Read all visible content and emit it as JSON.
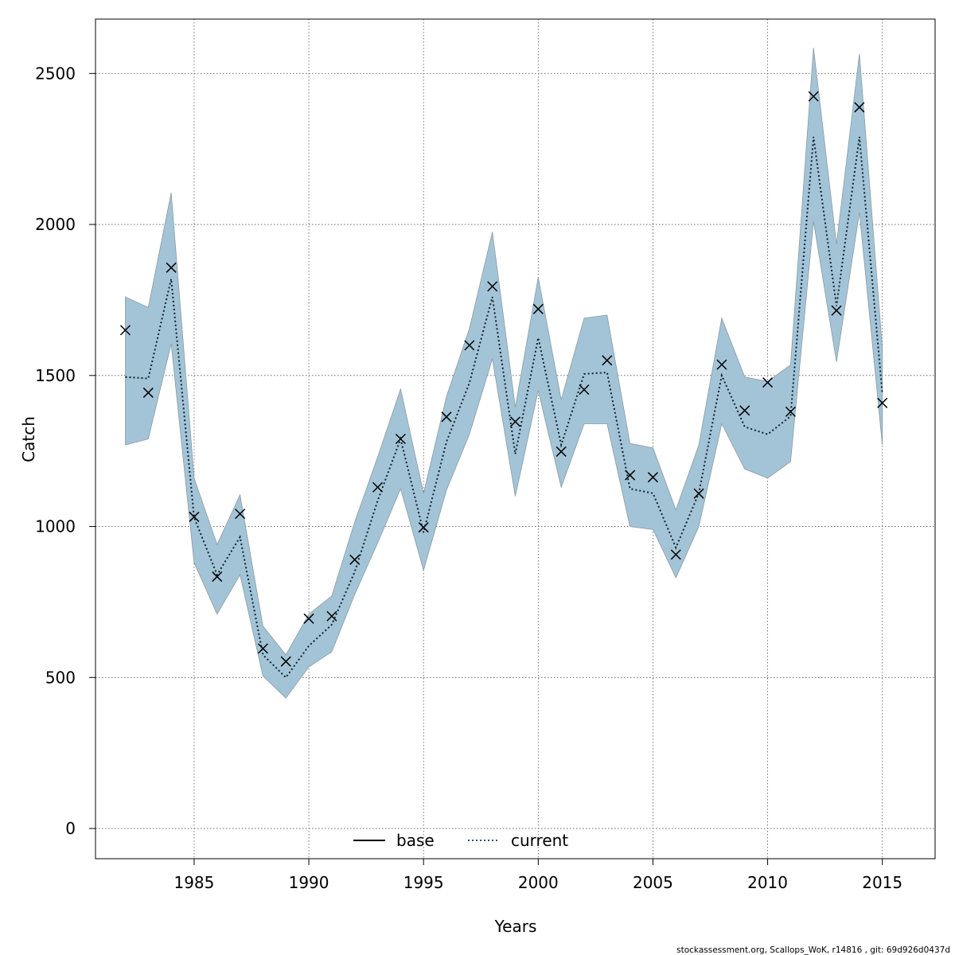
{
  "chart_data": {
    "type": "line",
    "title": "",
    "xlabel": "Years",
    "ylabel": "Catch",
    "xlim": [
      1980.7,
      2017.3
    ],
    "ylim": [
      -100,
      2680
    ],
    "xticks": [
      1985,
      1990,
      1995,
      2000,
      2005,
      2010,
      2015
    ],
    "yticks": [
      0,
      500,
      1000,
      1500,
      2000,
      2500
    ],
    "grid": true,
    "legend": {
      "placement": "bottom",
      "entries": [
        {
          "name": "base",
          "color": "#000000",
          "style": "solid"
        },
        {
          "name": "current",
          "color": "#1f4e79",
          "style": "dotted"
        }
      ]
    },
    "colors": {
      "band": "#a3c4d6",
      "band_edge": "#8a9aa3",
      "observed": "#000000",
      "current_line": "#0b2233"
    },
    "years": [
      1982,
      1983,
      1984,
      1985,
      1986,
      1987,
      1988,
      1989,
      1990,
      1991,
      1992,
      1993,
      1994,
      1995,
      1996,
      1997,
      1998,
      1999,
      2000,
      2001,
      2002,
      2003,
      2004,
      2005,
      2006,
      2007,
      2008,
      2009,
      2010,
      2011,
      2012,
      2013,
      2014,
      2015
    ],
    "series": [
      {
        "name": "observed",
        "values": [
          1650,
          1443,
          1857,
          1032,
          834,
          1042,
          596,
          553,
          695,
          703,
          890,
          1130,
          1290,
          997,
          1363,
          1600,
          1795,
          1347,
          1720,
          1248,
          1453,
          1550,
          1170,
          1163,
          907,
          1109,
          1536,
          1384,
          1477,
          1380,
          2424,
          1715,
          2388,
          1409
        ]
      },
      {
        "name": "current",
        "values": [
          1495,
          1490,
          1820,
          1030,
          840,
          965,
          575,
          500,
          605,
          675,
          850,
          1085,
          1290,
          980,
          1280,
          1475,
          1760,
          1240,
          1625,
          1270,
          1505,
          1510,
          1125,
          1110,
          930,
          1110,
          1500,
          1330,
          1305,
          1365,
          2290,
          1730,
          2290,
          1440
        ]
      },
      {
        "name": "upper",
        "values": [
          1760,
          1725,
          2105,
          1160,
          940,
          1105,
          670,
          575,
          710,
          770,
          1015,
          1230,
          1455,
          1110,
          1430,
          1655,
          1975,
          1395,
          1825,
          1420,
          1690,
          1700,
          1275,
          1260,
          1055,
          1270,
          1690,
          1495,
          1480,
          1535,
          2585,
          1935,
          2565,
          1590
        ]
      },
      {
        "name": "lower",
        "values": [
          1270,
          1290,
          1605,
          880,
          710,
          840,
          505,
          432,
          535,
          585,
          775,
          945,
          1125,
          855,
          1120,
          1305,
          1555,
          1100,
          1450,
          1130,
          1340,
          1340,
          1000,
          990,
          830,
          1000,
          1340,
          1190,
          1160,
          1215,
          2010,
          1545,
          2040,
          1270
        ]
      }
    ]
  },
  "footer": "stockassessment.org, Scallops_WoK, r14816 , git: 69d926d0437d"
}
